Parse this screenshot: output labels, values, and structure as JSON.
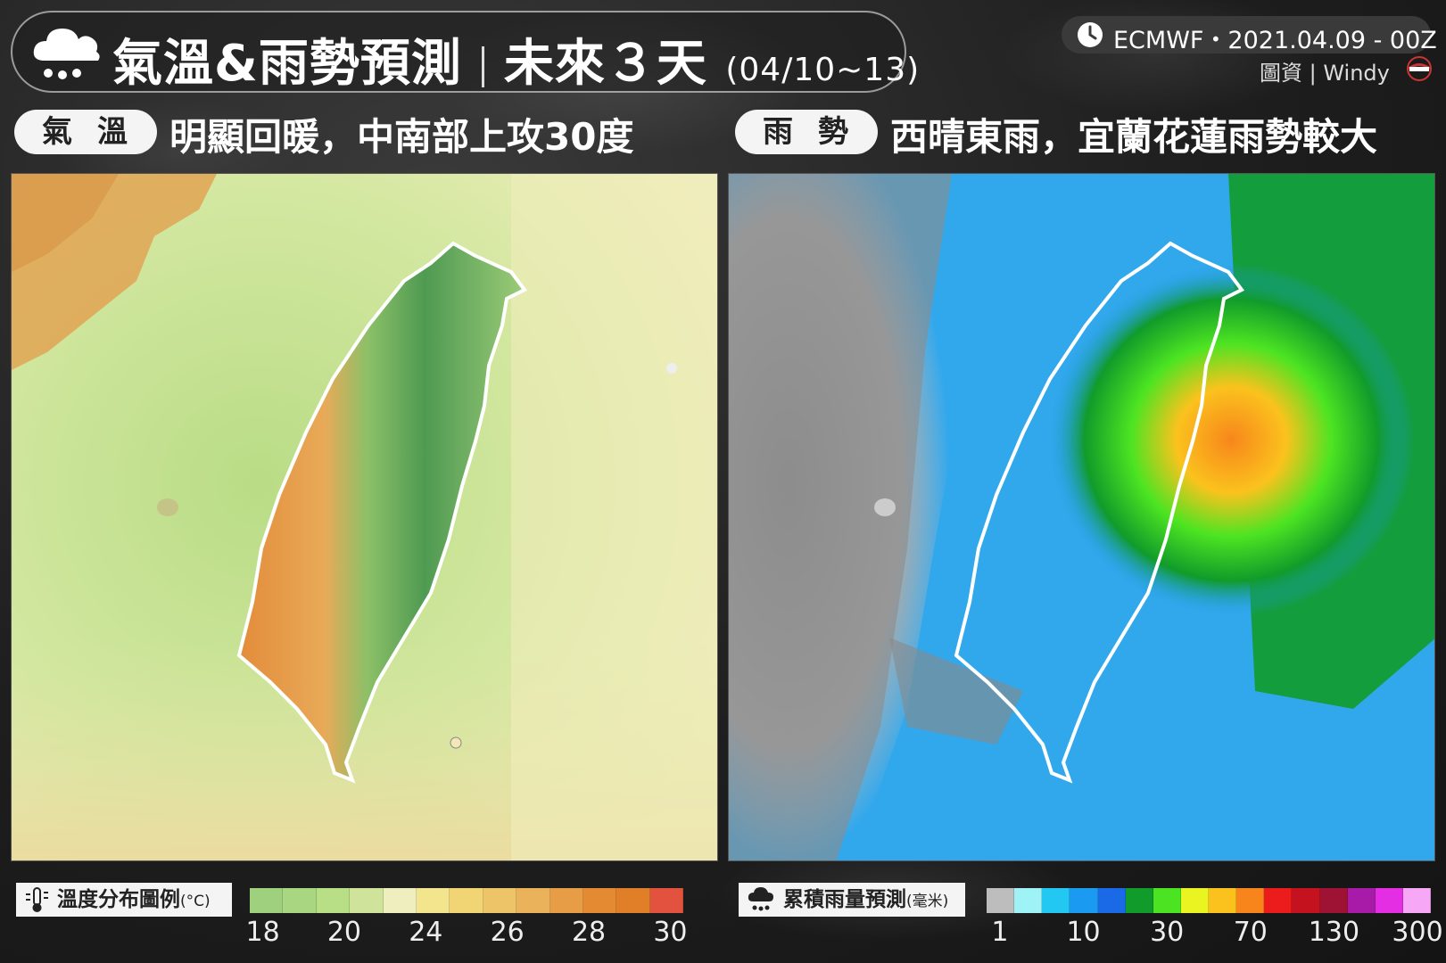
{
  "header": {
    "title": "氣溫&雨勢預測",
    "subtitle": "未來３天",
    "date_range": "(04/10~13)",
    "source": "ECMWF・2021.04.09 - 00Z",
    "credit": "圖資 | Windy"
  },
  "left_panel": {
    "badge": "氣溫",
    "headline": "明顯回暖，中南部上攻30度",
    "legend_title": "溫度分布圖例",
    "legend_unit": "(°C)",
    "legend_colors": [
      "#9ed07e",
      "#a9d680",
      "#b8de86",
      "#cfe39a",
      "#efeebe",
      "#f3e48e",
      "#f1d474",
      "#eec469",
      "#ebb25c",
      "#e79c46",
      "#e48a33",
      "#e07f27",
      "#e2523f"
    ],
    "legend_ticks": [
      "18",
      "20",
      "24",
      "26",
      "28",
      "30"
    ]
  },
  "right_panel": {
    "badge": "雨勢",
    "headline": "西晴東雨，宜蘭花蓮雨勢較大",
    "legend_title": "累積雨量預測",
    "legend_unit": "(毫米)",
    "legend_colors": [
      "#bdbdbd",
      "#9ff2f6",
      "#22c8f2",
      "#1a9af0",
      "#1a6ae8",
      "#119b2a",
      "#4ce422",
      "#eaf420",
      "#fbc21d",
      "#f7851c",
      "#ec1c1c",
      "#c4121e",
      "#9e1234",
      "#a81aa8",
      "#e42ee4",
      "#f6a8f6"
    ],
    "legend_ticks": [
      "1",
      "10",
      "30",
      "70",
      "130",
      "300"
    ]
  },
  "icons": {
    "title": "cloud-rain-icon",
    "source": "clock-icon",
    "temp_legend": "thermometer-sun-icon",
    "rain_legend": "cloud-rain-icon"
  }
}
